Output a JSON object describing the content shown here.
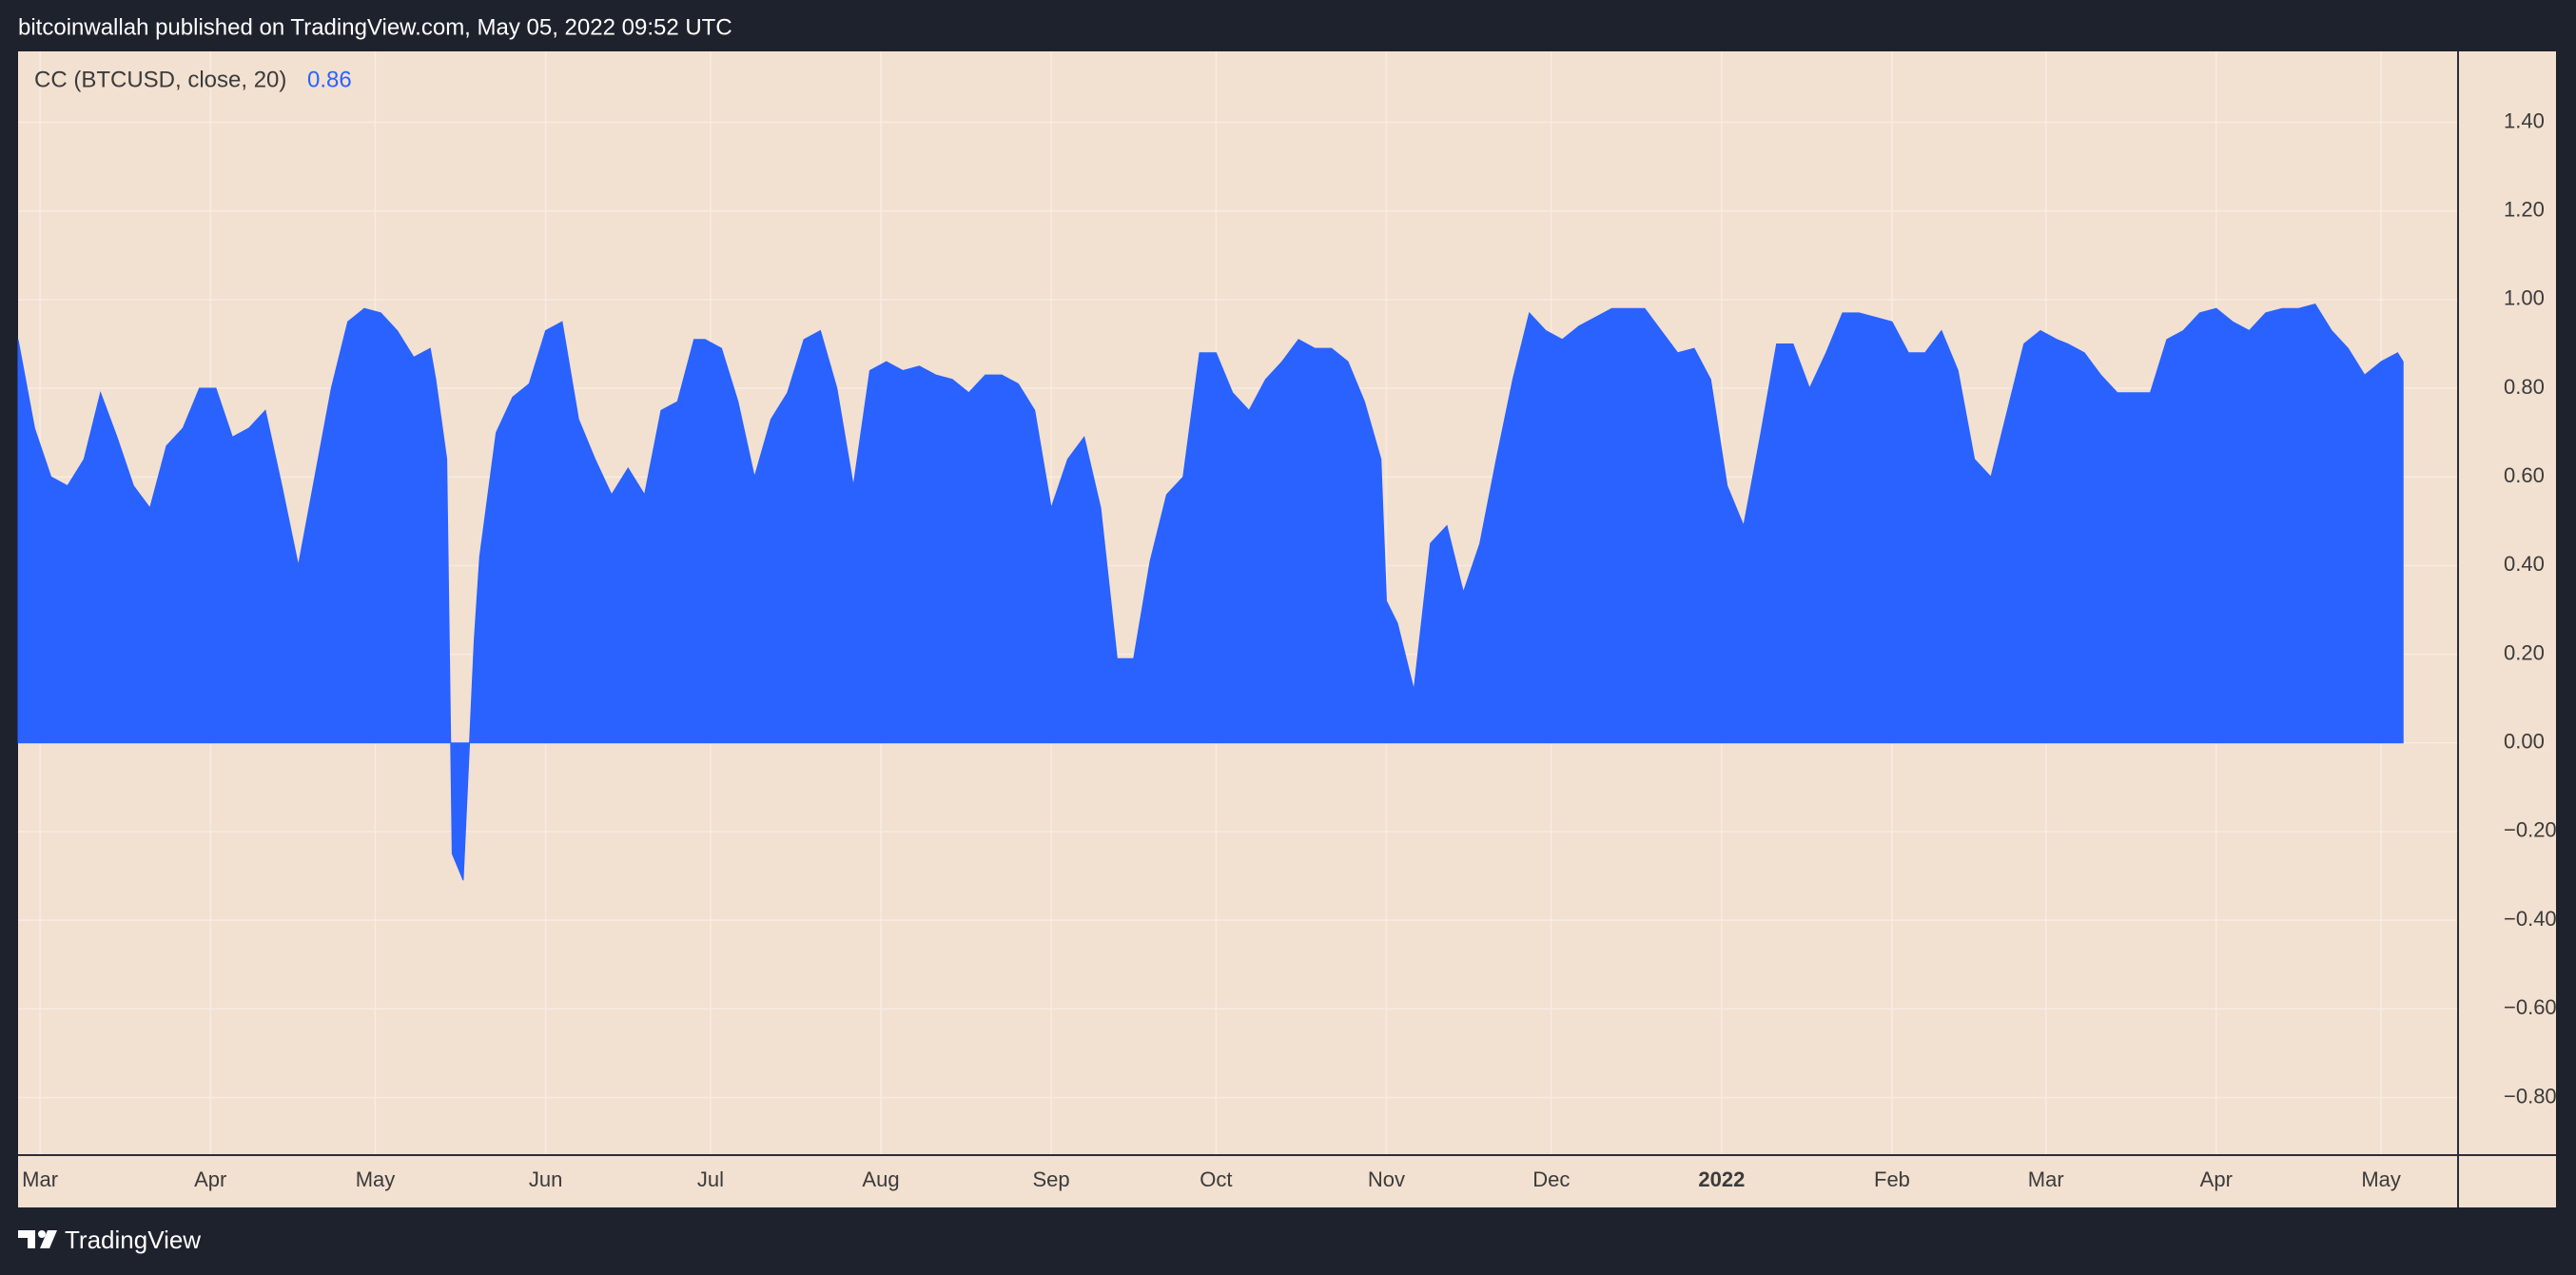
{
  "header": "bitcoinwallah published on TradingView.com, May 05, 2022 09:52 UTC",
  "footer_brand": "TradingView",
  "chart_data": {
    "type": "area",
    "title": "CC (BTCUSD, close, 20)",
    "last_value": 0.86,
    "color": "#2962ff",
    "grid": true,
    "x": [
      0,
      3,
      6,
      9,
      12,
      15,
      18,
      21,
      24,
      27,
      30,
      33,
      36,
      39,
      42,
      45,
      48,
      51,
      54,
      57,
      60,
      63,
      66,
      69,
      72,
      75,
      76,
      78,
      79,
      81,
      83,
      84,
      87,
      90,
      93,
      96,
      99,
      102,
      105,
      108,
      111,
      114,
      117,
      120,
      123,
      125,
      128,
      131,
      134,
      137,
      140,
      143,
      146,
      149,
      152,
      155,
      158,
      161,
      164,
      167,
      170,
      173,
      176,
      179,
      182,
      185,
      188,
      191,
      194,
      197,
      200,
      203,
      206,
      209,
      212,
      215,
      218,
      221,
      224,
      227,
      230,
      233,
      236,
      239,
      242,
      245,
      248,
      249,
      251,
      254,
      257,
      260,
      263,
      266,
      269,
      272,
      275,
      278,
      281,
      284,
      287,
      290,
      293,
      296,
      299,
      302,
      305,
      308,
      311,
      314,
      317,
      320,
      323,
      326,
      329,
      332,
      335,
      338,
      341,
      344,
      347,
      350,
      353,
      356,
      359,
      362,
      365,
      368,
      371,
      373,
      376,
      379,
      382,
      385,
      388,
      391,
      394,
      397,
      400,
      403,
      406,
      409,
      412,
      415,
      418,
      421,
      424,
      427,
      430,
      433,
      434
    ],
    "values": [
      0.91,
      0.71,
      0.6,
      0.58,
      0.64,
      0.79,
      0.69,
      0.58,
      0.53,
      0.67,
      0.71,
      0.8,
      0.8,
      0.69,
      0.71,
      0.75,
      0.58,
      0.4,
      0.6,
      0.8,
      0.95,
      0.98,
      0.97,
      0.93,
      0.87,
      0.89,
      0.82,
      0.64,
      -0.25,
      -0.31,
      0.23,
      0.42,
      0.7,
      0.78,
      0.81,
      0.93,
      0.95,
      0.73,
      0.64,
      0.56,
      0.62,
      0.56,
      0.75,
      0.77,
      0.91,
      0.91,
      0.89,
      0.77,
      0.6,
      0.73,
      0.79,
      0.91,
      0.93,
      0.8,
      0.58,
      0.84,
      0.86,
      0.84,
      0.85,
      0.83,
      0.82,
      0.79,
      0.83,
      0.83,
      0.81,
      0.75,
      0.53,
      0.64,
      0.69,
      0.53,
      0.19,
      0.19,
      0.41,
      0.56,
      0.6,
      0.88,
      0.88,
      0.79,
      0.75,
      0.82,
      0.86,
      0.91,
      0.89,
      0.89,
      0.86,
      0.77,
      0.64,
      0.32,
      0.27,
      0.12,
      0.45,
      0.49,
      0.34,
      0.45,
      0.64,
      0.82,
      0.97,
      0.93,
      0.91,
      0.94,
      0.96,
      0.98,
      0.98,
      0.98,
      0.93,
      0.88,
      0.89,
      0.82,
      0.58,
      0.49,
      0.69,
      0.9,
      0.9,
      0.8,
      0.88,
      0.97,
      0.97,
      0.96,
      0.95,
      0.88,
      0.88,
      0.93,
      0.84,
      0.64,
      0.6,
      0.75,
      0.9,
      0.93,
      0.91,
      0.9,
      0.88,
      0.83,
      0.79,
      0.79,
      0.79,
      0.91,
      0.93,
      0.97,
      0.98,
      0.95,
      0.93,
      0.97,
      0.98,
      0.98,
      0.99,
      0.93,
      0.89,
      0.83,
      0.86,
      0.88,
      0.86
    ],
    "xlim": [
      0,
      444
    ],
    "xticks": [
      {
        "value": 4,
        "label": "Mar"
      },
      {
        "value": 35,
        "label": "Apr"
      },
      {
        "value": 65,
        "label": "May"
      },
      {
        "value": 96,
        "label": "Jun"
      },
      {
        "value": 126,
        "label": "Jul"
      },
      {
        "value": 157,
        "label": "Aug"
      },
      {
        "value": 188,
        "label": "Sep"
      },
      {
        "value": 218,
        "label": "Oct"
      },
      {
        "value": 249,
        "label": "Nov"
      },
      {
        "value": 279,
        "label": "Dec"
      },
      {
        "value": 310,
        "label": "2022"
      },
      {
        "value": 341,
        "label": "Feb"
      },
      {
        "value": 369,
        "label": "Mar"
      },
      {
        "value": 400,
        "label": "Apr"
      },
      {
        "value": 430,
        "label": "May"
      }
    ],
    "ylim": [
      -0.93,
      1.56
    ],
    "yticks": [
      {
        "value": -0.8,
        "label": "−0.80"
      },
      {
        "value": -0.6,
        "label": "−0.60"
      },
      {
        "value": -0.4,
        "label": "−0.40"
      },
      {
        "value": -0.2,
        "label": "−0.20"
      },
      {
        "value": 0,
        "label": "0.00"
      },
      {
        "value": 0.2,
        "label": "0.20"
      },
      {
        "value": 0.4,
        "label": "0.40"
      },
      {
        "value": 0.6,
        "label": "0.60"
      },
      {
        "value": 0.8,
        "label": "0.80"
      },
      {
        "value": 1.0,
        "label": "1.00"
      },
      {
        "value": 1.2,
        "label": "1.20"
      },
      {
        "value": 1.4,
        "label": "1.40"
      }
    ]
  }
}
